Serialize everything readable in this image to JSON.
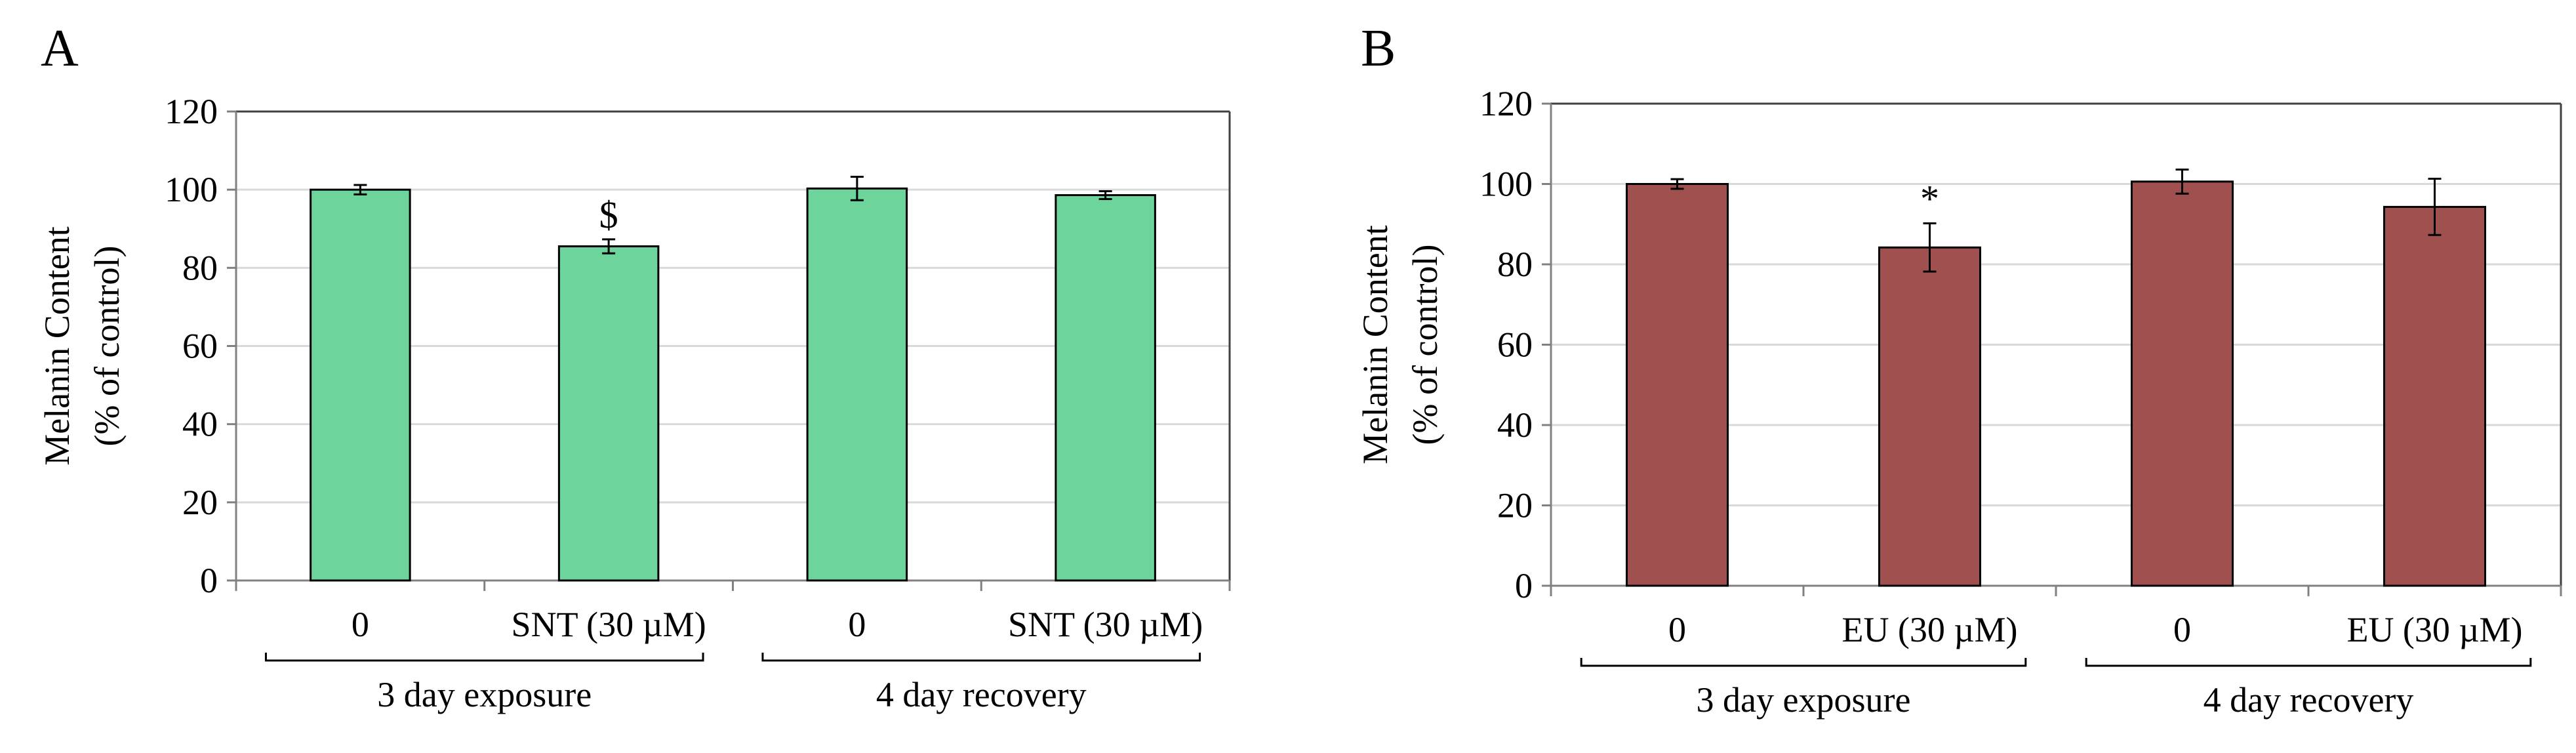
{
  "chart_data": [
    {
      "panel_label": "A",
      "type": "bar",
      "ylabel_line1": "Melanin Content",
      "ylabel_line2": "(% of control)",
      "ylim": [
        0,
        120
      ],
      "yticks": [
        "0",
        "20",
        "40",
        "60",
        "80",
        "100",
        "120"
      ],
      "grid": true,
      "bar_color": "#6dd49b",
      "categories": [
        "0",
        "SNT (30 µM)",
        "0",
        "SNT (30 µM)"
      ],
      "values": [
        100,
        85.5,
        100.3,
        98.6
      ],
      "errors": [
        1.2,
        1.8,
        3.0,
        1.0
      ],
      "annotations": [
        "",
        "$",
        "",
        ""
      ],
      "groups": [
        {
          "label": "3 day exposure",
          "span": [
            0,
            1
          ]
        },
        {
          "label": "4 day recovery",
          "span": [
            2,
            3
          ]
        }
      ]
    },
    {
      "panel_label": "B",
      "type": "bar",
      "ylabel_line1": "Melanin Content",
      "ylabel_line2": "(% of control)",
      "ylim": [
        0,
        120
      ],
      "yticks": [
        "0",
        "20",
        "40",
        "60",
        "80",
        "100",
        "120"
      ],
      "grid": true,
      "bar_color": "#a0504e",
      "categories": [
        "0",
        "EU (30 µM)",
        "0",
        "EU (30 µM)"
      ],
      "values": [
        100,
        84.2,
        100.6,
        94.3
      ],
      "errors": [
        1.2,
        6.0,
        3.0,
        7.0
      ],
      "annotations": [
        "",
        "*",
        "",
        ""
      ],
      "groups": [
        {
          "label": "3 day exposure",
          "span": [
            0,
            1
          ]
        },
        {
          "label": "4 day recovery",
          "span": [
            2,
            3
          ]
        }
      ]
    }
  ]
}
